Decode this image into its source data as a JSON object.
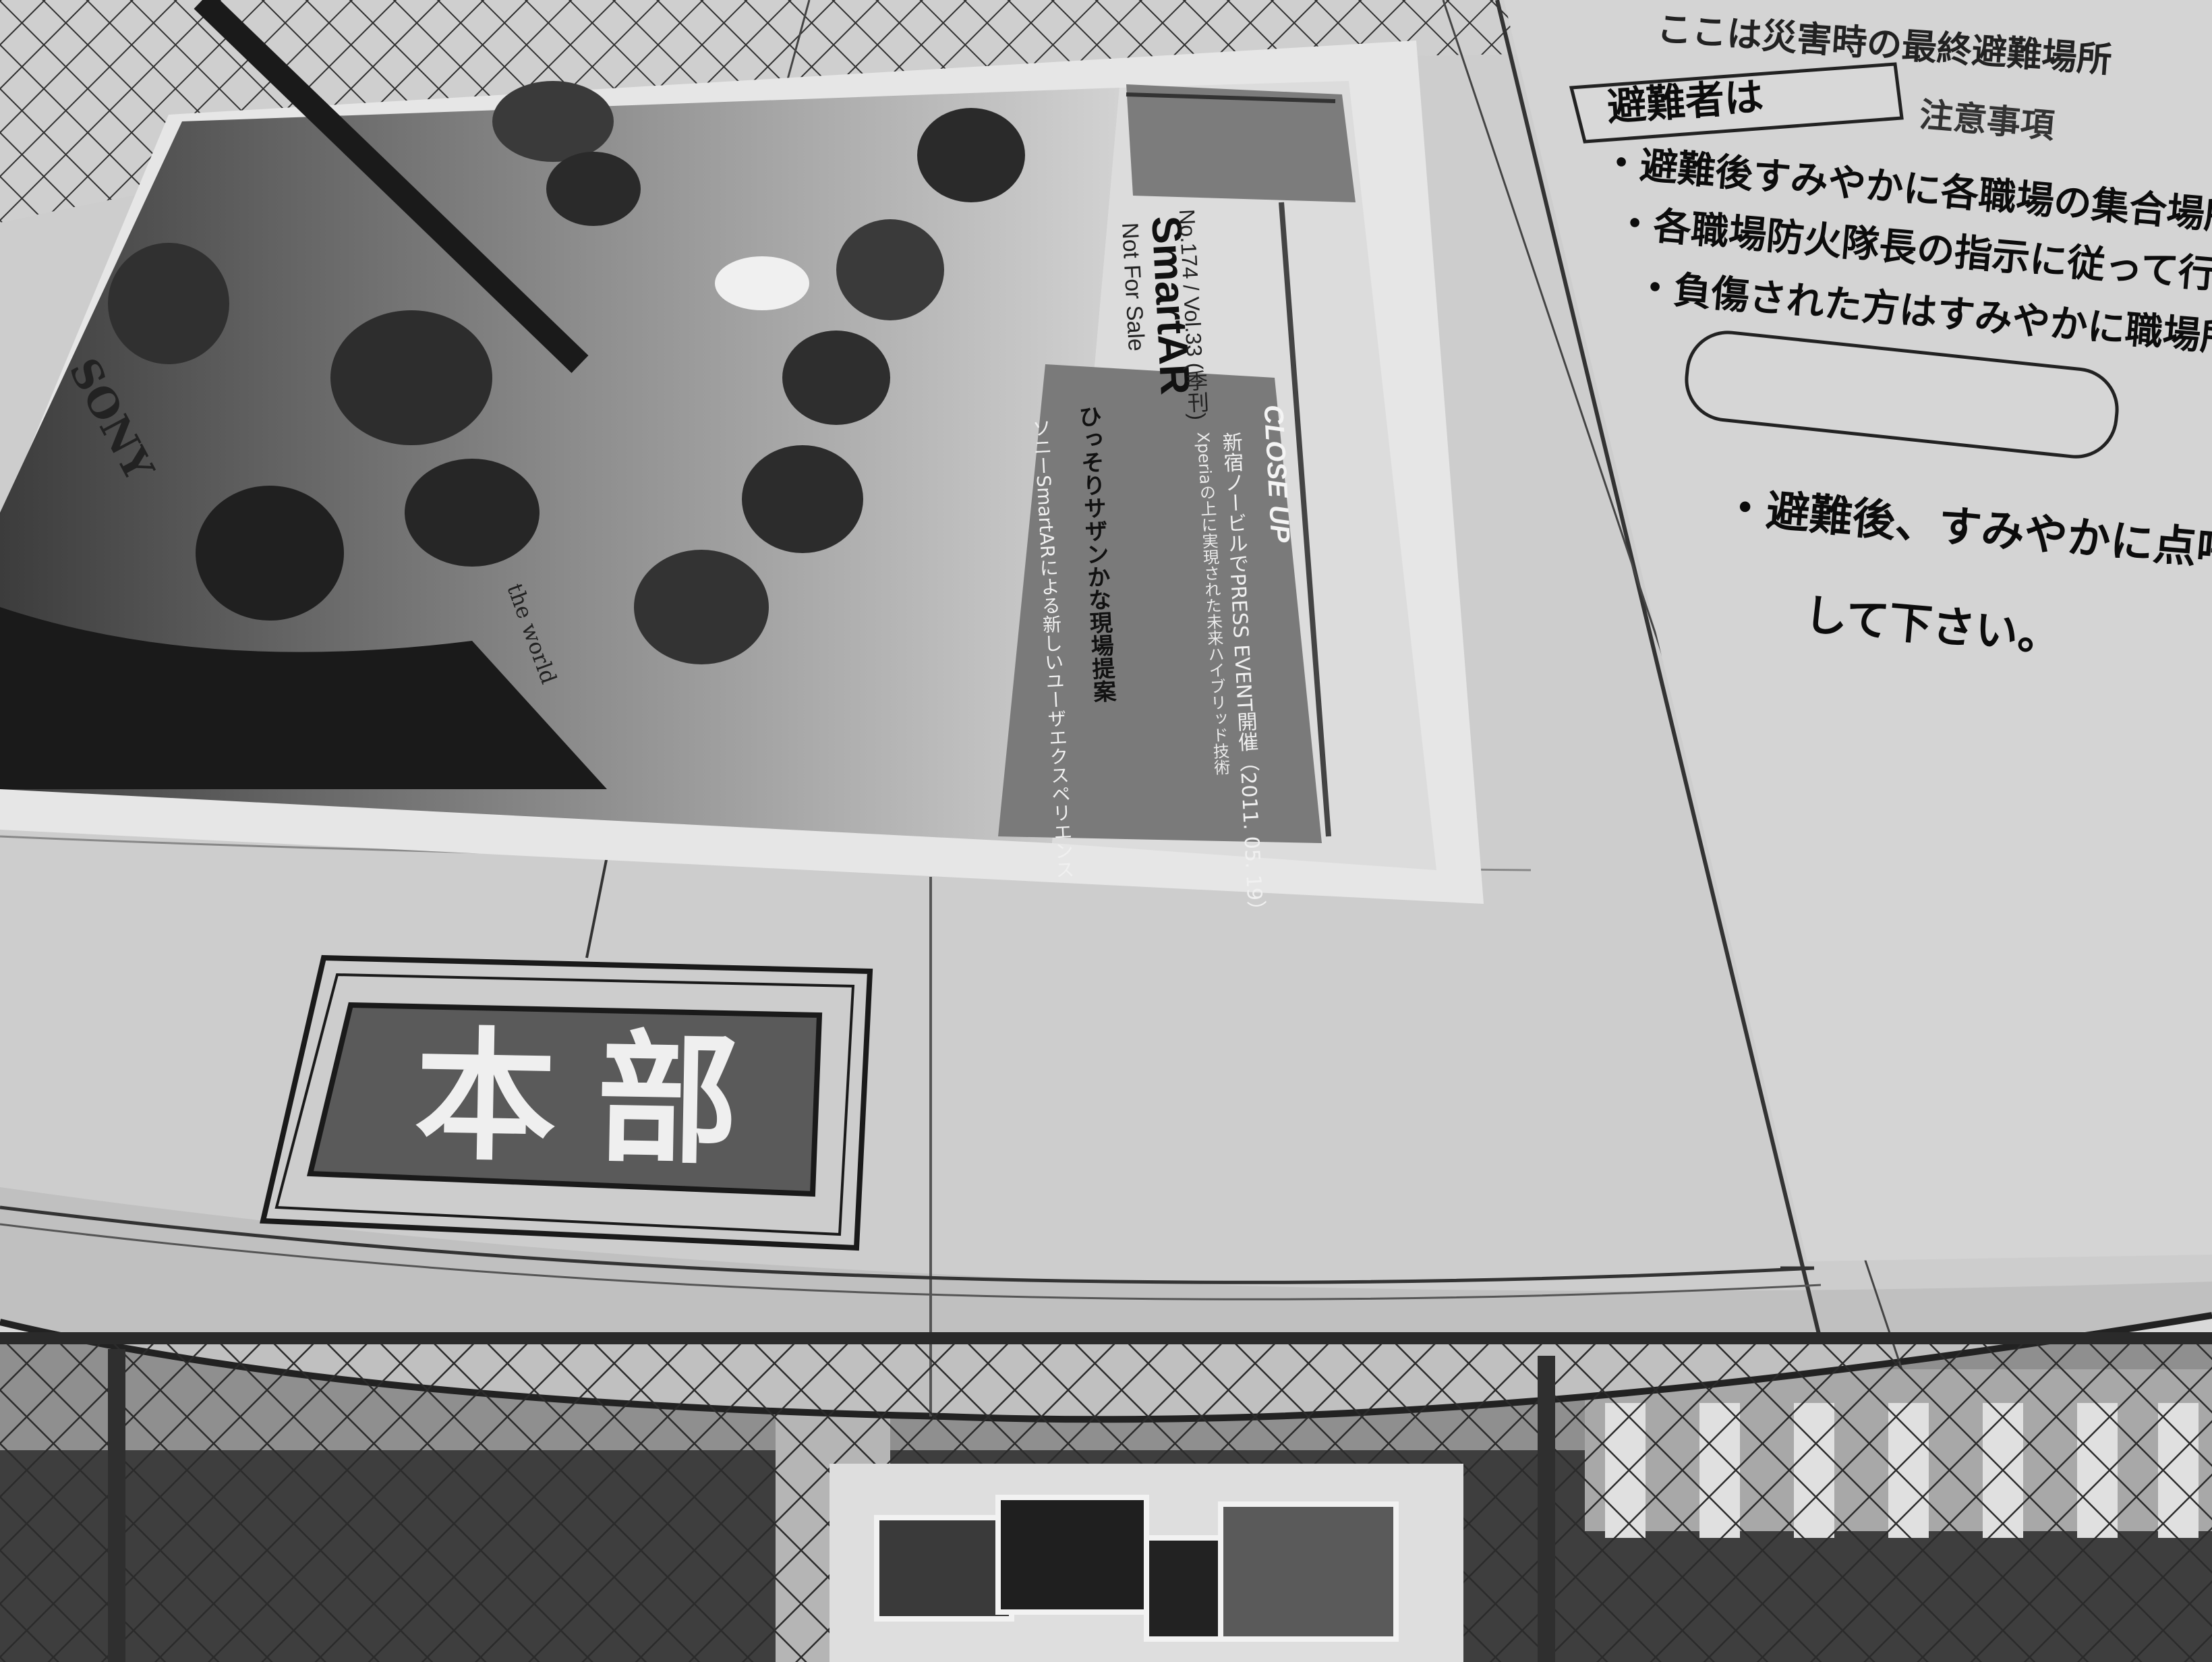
{
  "scene": {
    "colors": {
      "panel": "#cdcdcd",
      "panel_dark": "#b9b9b9",
      "line": "#2a2a2a",
      "sign_bg": "#5c5c5c",
      "fence": "#3a3a3a"
    }
  },
  "poster": {
    "magazine_name": "SmartAR",
    "issue": "No.174 / Vol.33 (季刊)",
    "not_for_sale": "Not For Sale",
    "headline": "ひっそりサザンかな現場提案",
    "close_up_label": "CLOSE UP",
    "close_up_lines": [
      "新宿ノービルでPRESS EVENT開催（2011. 05. 19）",
      "Xperiaの上に実現された未来ハイブリッド技術",
      "ソニーSmartARによる新しいユーザエクスペリエンス"
    ],
    "shirt_brand": "SONY",
    "shirt_text": "the world"
  },
  "sign": {
    "label": "本部"
  },
  "notice": {
    "top_partial": "ここは災害時の最終避難場所",
    "heading": "避難者は",
    "heading_sub": "注意事項",
    "bullets": [
      "避難後すみやかに各職場の集合場所に",
      "各職場防火隊長の指示に従って行動",
      "負傷された方はすみやかに職場所"
    ],
    "bullet_last_line1": "避難後、すみやかに点呼",
    "bullet_last_line2": "して下さい。",
    "bullet_mark": "・"
  }
}
